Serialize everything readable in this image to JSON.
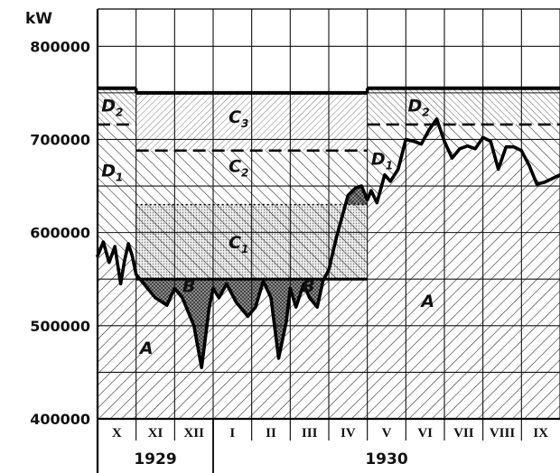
{
  "chart_data": {
    "type": "area",
    "title": "",
    "unit_label": "kW",
    "ylim": [
      400000,
      840000
    ],
    "y_ticks": [
      {
        "value": 800000,
        "label": "800000"
      },
      {
        "value": 700000,
        "label": "700000"
      },
      {
        "value": 600000,
        "label": "600000"
      },
      {
        "value": 500000,
        "label": "500000"
      },
      {
        "value": 400000,
        "label": "400000"
      }
    ],
    "months": [
      "X",
      "XI",
      "XII",
      "I",
      "II",
      "III",
      "IV",
      "V",
      "VI",
      "VII",
      "VIII",
      "IX"
    ],
    "years": [
      {
        "label": "1929",
        "from_month": 0,
        "to_month": 2
      },
      {
        "label": "1930",
        "from_month": 3,
        "to_month": 11
      }
    ],
    "grid": true,
    "levels": [
      {
        "name": "upper_capacity",
        "style": "solid",
        "segments": [
          [
            0.0,
            1.0,
            755000
          ],
          [
            1.0,
            7.0,
            750000
          ],
          [
            7.0,
            12.0,
            755000
          ]
        ]
      },
      {
        "name": "D2_boundary",
        "style": "dashed",
        "segments": [
          [
            0.0,
            1.0,
            716000
          ],
          [
            7.0,
            12.0,
            716000
          ]
        ]
      },
      {
        "name": "C2_boundary",
        "style": "dashed",
        "segments": [
          [
            1.0,
            7.0,
            688000
          ]
        ]
      },
      {
        "name": "C1_boundary",
        "style": "dotted",
        "segments": [
          [
            1.0,
            7.0,
            630000
          ]
        ]
      },
      {
        "name": "B_boundary",
        "style": "solid",
        "segments": [
          [
            1.0,
            7.0,
            550000
          ]
        ]
      }
    ],
    "series": [
      {
        "name": "A",
        "x": [
          0.0,
          0.15,
          0.3,
          0.45,
          0.6,
          0.7,
          0.8,
          0.9,
          1.0,
          1.2,
          1.5,
          1.8,
          2.0,
          2.2,
          2.5,
          2.7,
          2.9,
          3.0,
          3.15,
          3.35,
          3.6,
          3.9,
          4.1,
          4.3,
          4.5,
          4.7,
          4.9,
          5.0,
          5.15,
          5.35,
          5.5,
          5.7,
          5.85,
          6.0,
          6.2,
          6.5,
          6.7,
          6.85,
          7.0,
          7.1,
          7.25,
          7.45,
          7.6,
          7.8,
          8.0,
          8.2,
          8.4,
          8.6,
          8.8,
          9.0,
          9.2,
          9.4,
          9.6,
          9.8,
          10.0,
          10.2,
          10.4,
          10.6,
          10.8,
          11.0,
          11.2,
          11.4,
          11.6,
          11.8,
          12.0
        ],
        "y": [
          575000,
          590000,
          568000,
          585000,
          545000,
          570000,
          588000,
          575000,
          555000,
          545000,
          530000,
          522000,
          540000,
          530000,
          500000,
          455000,
          520000,
          540000,
          530000,
          545000,
          525000,
          510000,
          520000,
          548000,
          530000,
          465000,
          505000,
          540000,
          520000,
          545000,
          530000,
          520000,
          548000,
          560000,
          595000,
          640000,
          648000,
          650000,
          635000,
          645000,
          632000,
          662000,
          655000,
          668000,
          700000,
          698000,
          695000,
          710000,
          722000,
          698000,
          680000,
          690000,
          693000,
          690000,
          702000,
          698000,
          668000,
          692000,
          692000,
          688000,
          672000,
          652000,
          654000,
          658000,
          662000
        ]
      }
    ],
    "region_labels": [
      {
        "text": "A",
        "sub": "",
        "x": 1.1,
        "y": 470000
      },
      {
        "text": "A",
        "sub": "",
        "x": 8.4,
        "y": 520000
      },
      {
        "text": "B",
        "sub": "",
        "x": 2.2,
        "y": 536000
      },
      {
        "text": "B",
        "sub": "",
        "x": 5.3,
        "y": 536000
      },
      {
        "text": "C",
        "sub": "1",
        "x": 3.4,
        "y": 583000
      },
      {
        "text": "C",
        "sub": "2",
        "x": 3.4,
        "y": 665000
      },
      {
        "text": "C",
        "sub": "3",
        "x": 3.4,
        "y": 718000
      },
      {
        "text": "D",
        "sub": "1",
        "x": 0.1,
        "y": 660000
      },
      {
        "text": "D",
        "sub": "1",
        "x": 7.1,
        "y": 673000
      },
      {
        "text": "D",
        "sub": "2",
        "x": 0.1,
        "y": 730000
      },
      {
        "text": "D",
        "sub": "2",
        "x": 8.05,
        "y": 730000
      }
    ]
  }
}
